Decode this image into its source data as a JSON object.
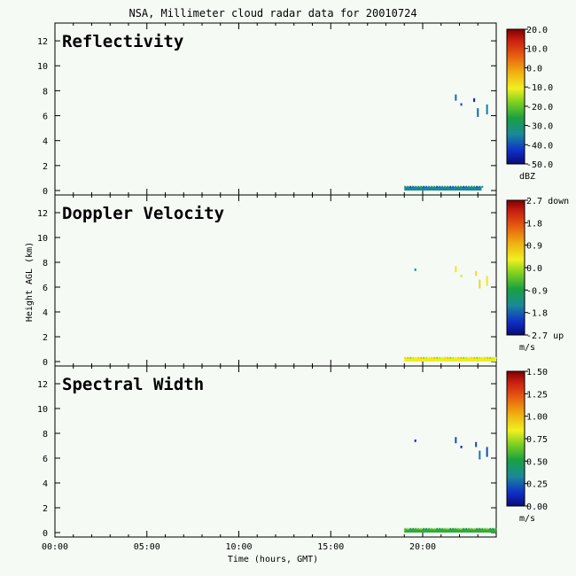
{
  "title": "NSA, Millimeter cloud radar data for 20010724",
  "ylabel": "Height AGL (km)",
  "xlabel": "Time (hours, GMT)",
  "chart_data": [
    {
      "type": "heatmap",
      "panel_title": "Reflectivity",
      "xlim": [
        0,
        24
      ],
      "ylim": [
        0,
        13
      ],
      "y_ticks": [
        "0",
        "2",
        "4",
        "6",
        "8",
        "10",
        "12"
      ],
      "colorbar": {
        "range": [
          -50,
          20
        ],
        "tick_labels": [
          "20.0",
          "10.0",
          "0.0",
          "-10.0",
          "-20.0",
          "-30.0",
          "-40.0",
          "-50.0"
        ],
        "unit": "dBZ"
      },
      "features": [
        {
          "kind": "near-surface layer",
          "t_start": 19.0,
          "t_end": 23.2,
          "h_bottom": 0.0,
          "h_top": 0.3,
          "value": -35
        },
        {
          "kind": "echo",
          "t": 21.8,
          "h_bottom": 7.2,
          "h_top": 7.7,
          "value": -38
        },
        {
          "kind": "echo",
          "t": 22.1,
          "h_bottom": 6.8,
          "h_top": 7.0,
          "value": -42
        },
        {
          "kind": "echo",
          "t": 22.8,
          "h_bottom": 7.1,
          "h_top": 7.4,
          "value": -45
        },
        {
          "kind": "echo",
          "t": 23.0,
          "h_bottom": 5.9,
          "h_top": 6.6,
          "value": -38
        },
        {
          "kind": "echo",
          "t": 23.5,
          "h_bottom": 6.1,
          "h_top": 6.9,
          "value": -36
        }
      ]
    },
    {
      "type": "heatmap",
      "panel_title": "Doppler Velocity",
      "xlim": [
        0,
        24
      ],
      "ylim": [
        0,
        13
      ],
      "y_ticks": [
        "0",
        "2",
        "4",
        "6",
        "8",
        "10",
        "12"
      ],
      "colorbar": {
        "range": [
          -2.7,
          2.7
        ],
        "tick_labels": [
          "2.7 down",
          "1.8",
          "0.9",
          "0.0",
          "-0.9",
          "-1.8",
          "-2.7 up"
        ],
        "unit": "m/s"
      },
      "features": [
        {
          "kind": "near-surface layer",
          "t_start": 19.0,
          "t_end": 24.0,
          "h_bottom": 0.0,
          "h_top": 0.3,
          "value": 0.3
        },
        {
          "kind": "echo",
          "t": 19.6,
          "h_bottom": 7.3,
          "h_top": 7.5,
          "value": -1.5
        },
        {
          "kind": "echo",
          "t": 21.8,
          "h_bottom": 7.2,
          "h_top": 7.7,
          "value": 0.4
        },
        {
          "kind": "echo",
          "t": 22.1,
          "h_bottom": 6.8,
          "h_top": 7.0,
          "value": 0.2
        },
        {
          "kind": "echo",
          "t": 22.9,
          "h_bottom": 6.9,
          "h_top": 7.3,
          "value": 0.5
        },
        {
          "kind": "echo",
          "t": 23.1,
          "h_bottom": 5.9,
          "h_top": 6.6,
          "value": 0.6
        },
        {
          "kind": "echo",
          "t": 23.5,
          "h_bottom": 6.1,
          "h_top": 6.9,
          "value": 0.4
        }
      ]
    },
    {
      "type": "heatmap",
      "panel_title": "Spectral Width",
      "xlim": [
        0,
        24
      ],
      "ylim": [
        0,
        13
      ],
      "y_ticks": [
        "0",
        "2",
        "4",
        "6",
        "8",
        "10",
        "12"
      ],
      "x_ticks": [
        "00:00",
        "05:00",
        "10:00",
        "15:00",
        "20:00"
      ],
      "colorbar": {
        "range": [
          0,
          1.5
        ],
        "tick_labels": [
          "1.50",
          "1.25",
          "1.00",
          "0.75",
          "0.50",
          "0.25",
          "0.00"
        ],
        "unit": "m/s"
      },
      "features": [
        {
          "kind": "near-surface layer",
          "t_start": 19.0,
          "t_end": 24.0,
          "h_bottom": 0.0,
          "h_top": 0.3,
          "value": 0.55
        },
        {
          "kind": "echo",
          "t": 19.6,
          "h_bottom": 7.3,
          "h_top": 7.5,
          "value": 0.1
        },
        {
          "kind": "echo",
          "t": 21.8,
          "h_bottom": 7.2,
          "h_top": 7.7,
          "value": 0.2
        },
        {
          "kind": "echo",
          "t": 22.1,
          "h_bottom": 6.8,
          "h_top": 7.0,
          "value": 0.1
        },
        {
          "kind": "echo",
          "t": 22.9,
          "h_bottom": 6.9,
          "h_top": 7.3,
          "value": 0.2
        },
        {
          "kind": "echo",
          "t": 23.1,
          "h_bottom": 5.9,
          "h_top": 6.6,
          "value": 0.3
        },
        {
          "kind": "echo",
          "t": 23.5,
          "h_bottom": 6.1,
          "h_top": 6.9,
          "value": 0.2
        }
      ]
    }
  ]
}
